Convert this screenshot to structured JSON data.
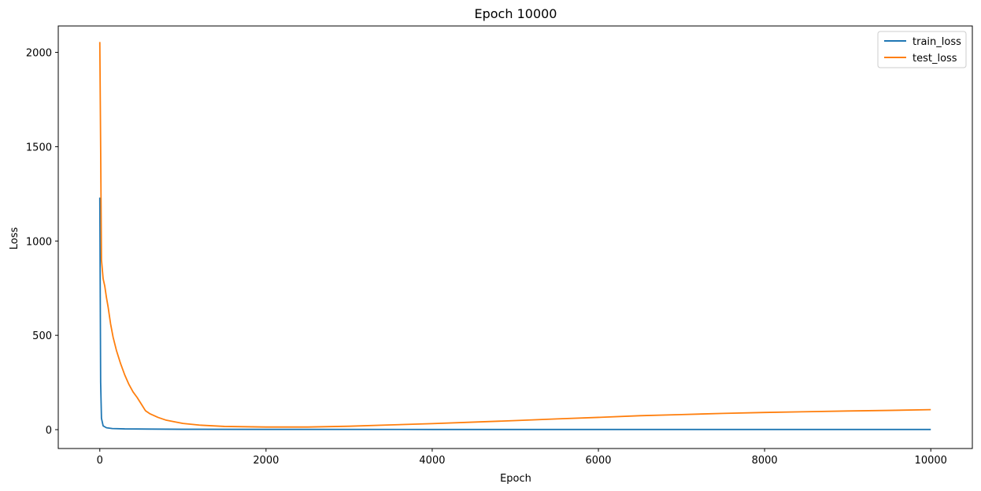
{
  "chart_data": {
    "type": "line",
    "title": "Epoch 10000",
    "xlabel": "Epoch",
    "ylabel": "Loss",
    "xlim": [
      -500,
      10500
    ],
    "ylim": [
      -100,
      2140
    ],
    "xticks": [
      0,
      2000,
      4000,
      6000,
      8000,
      10000
    ],
    "yticks": [
      0,
      500,
      1000,
      1500,
      2000
    ],
    "grid": false,
    "legend_position": "top-right",
    "series": [
      {
        "name": "train_loss",
        "color": "#1f77b4",
        "points": [
          [
            0,
            1230
          ],
          [
            10,
            250
          ],
          [
            20,
            60
          ],
          [
            40,
            20
          ],
          [
            80,
            10
          ],
          [
            150,
            6
          ],
          [
            300,
            4
          ],
          [
            600,
            3
          ],
          [
            1000,
            2
          ],
          [
            2000,
            1.5
          ],
          [
            4000,
            1
          ],
          [
            6000,
            1
          ],
          [
            8000,
            1
          ],
          [
            10000,
            1
          ]
        ]
      },
      {
        "name": "test_loss",
        "color": "#ff7f0e",
        "points": [
          [
            0,
            2055
          ],
          [
            10,
            1500
          ],
          [
            20,
            900
          ],
          [
            40,
            800
          ],
          [
            60,
            760
          ],
          [
            80,
            700
          ],
          [
            100,
            650
          ],
          [
            130,
            560
          ],
          [
            160,
            490
          ],
          [
            200,
            420
          ],
          [
            250,
            350
          ],
          [
            300,
            290
          ],
          [
            350,
            240
          ],
          [
            400,
            200
          ],
          [
            450,
            170
          ],
          [
            500,
            135
          ],
          [
            550,
            100
          ],
          [
            600,
            85
          ],
          [
            700,
            65
          ],
          [
            800,
            50
          ],
          [
            1000,
            33
          ],
          [
            1200,
            24
          ],
          [
            1500,
            17
          ],
          [
            2000,
            14
          ],
          [
            2500,
            14
          ],
          [
            3000,
            18
          ],
          [
            3500,
            25
          ],
          [
            4000,
            32
          ],
          [
            4500,
            40
          ],
          [
            5000,
            48
          ],
          [
            5500,
            57
          ],
          [
            6000,
            65
          ],
          [
            6500,
            74
          ],
          [
            7000,
            80
          ],
          [
            7500,
            86
          ],
          [
            8000,
            91
          ],
          [
            8500,
            95
          ],
          [
            9000,
            99
          ],
          [
            9500,
            102
          ],
          [
            10000,
            106
          ]
        ]
      }
    ]
  }
}
